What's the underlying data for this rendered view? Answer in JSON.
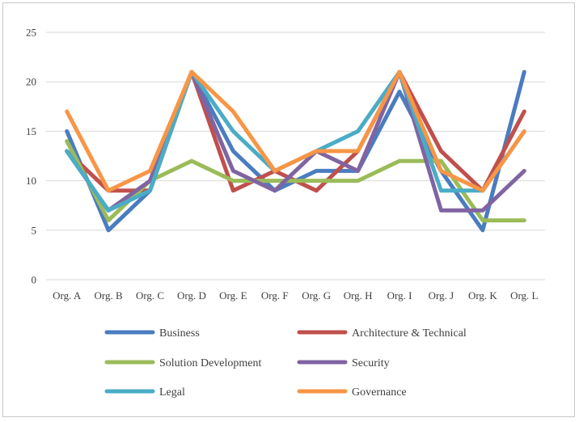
{
  "chart_data": {
    "type": "line",
    "title": "",
    "xlabel": "",
    "ylabel": "",
    "ylim": [
      0,
      25
    ],
    "yticks": [
      0,
      5,
      10,
      15,
      20,
      25
    ],
    "grid": true,
    "legend_position": "bottom",
    "categories": [
      "Org. A",
      "Org. B",
      "Org. C",
      "Org. D",
      "Org. E",
      "Org. F",
      "Org. G",
      "Org. H",
      "Org. I",
      "Org. J",
      "Org. K",
      "Org. L"
    ],
    "series": [
      {
        "name": "Business",
        "color": "#4a7cc0",
        "values": [
          15,
          5,
          9,
          21,
          13,
          9,
          11,
          11,
          19,
          11,
          5,
          21
        ]
      },
      {
        "name": "Architecture & Technical",
        "color": "#c0504d",
        "values": [
          13,
          9,
          9,
          21,
          9,
          11,
          9,
          13,
          21,
          13,
          9,
          17
        ]
      },
      {
        "name": "Solution Development",
        "color": "#9bbb59",
        "values": [
          14,
          6,
          10,
          12,
          10,
          10,
          10,
          10,
          12,
          12,
          6,
          6
        ]
      },
      {
        "name": "Security",
        "color": "#8064a2",
        "values": [
          13,
          7,
          10,
          21,
          11,
          9,
          13,
          11,
          21,
          7,
          7,
          11
        ]
      },
      {
        "name": "Legal",
        "color": "#4bacc6",
        "values": [
          13,
          7,
          9,
          21,
          15,
          11,
          13,
          15,
          21,
          9,
          9,
          15
        ]
      },
      {
        "name": "Governance",
        "color": "#f79646",
        "values": [
          17,
          9,
          11,
          21,
          17,
          11,
          13,
          13,
          21,
          11,
          9,
          15
        ]
      }
    ]
  }
}
